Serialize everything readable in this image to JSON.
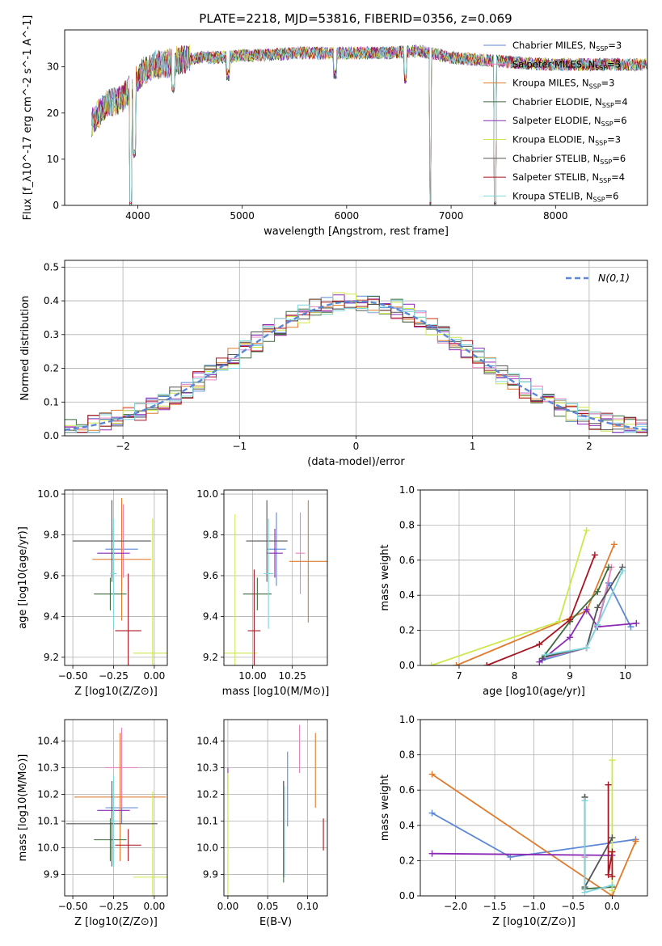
{
  "figure": {
    "title": "PLATE=2218, MJD=53816, FIBERID=0356, z=0.069"
  },
  "series_styles": [
    {
      "name": "Chabrier MILES",
      "nssp": "3",
      "color": "#5b87d6"
    },
    {
      "name": "Salpeter MILES",
      "nssp": "3",
      "color": "#e684c3"
    },
    {
      "name": "Kroupa MILES",
      "nssp": "3",
      "color": "#e07b2e"
    },
    {
      "name": "Chabrier ELODIE",
      "nssp": "4",
      "color": "#3e6b3e"
    },
    {
      "name": "Salpeter ELODIE",
      "nssp": "6",
      "color": "#8a2ab5"
    },
    {
      "name": "Kroupa ELODIE",
      "nssp": "3",
      "color": "#cde84a"
    },
    {
      "name": "Chabrier STELIB",
      "nssp": "6",
      "color": "#555555"
    },
    {
      "name": "Salpeter STELIB",
      "nssp": "4",
      "color": "#a81520"
    },
    {
      "name": "Kroupa STELIB",
      "nssp": "6",
      "color": "#7fd6dc"
    }
  ],
  "chart_data": [
    {
      "id": "spectrum",
      "type": "line",
      "title": "PLATE=2218, MJD=53816, FIBERID=0356, z=0.069",
      "xlabel": "wavelength [Angstrom, rest frame]",
      "ylabel": "Flux [f_λ10^-17 erg cm^-2 s^-1 A^-1]",
      "xlim": [
        3300,
        8880
      ],
      "ylim": [
        0,
        38
      ],
      "xticks": [
        4000,
        5000,
        6000,
        7000,
        8000
      ],
      "yticks": [
        0,
        10,
        20,
        30
      ],
      "grid": false,
      "legend": "upper right",
      "continuum": {
        "x": [
          3560,
          3700,
          3850,
          3950,
          4050,
          4150,
          4250,
          4400,
          4600,
          4800,
          5000,
          5200,
          5500,
          5800,
          6100,
          6400,
          6700,
          7000,
          7300,
          7600,
          7900,
          8200,
          8500,
          8880
        ],
        "y": [
          18,
          22,
          23,
          26,
          29,
          30.5,
          30.5,
          31.5,
          32,
          32,
          32.5,
          32.5,
          33,
          33,
          33,
          33,
          33.5,
          32,
          31.5,
          31,
          30.5,
          30.5,
          30.5,
          30.5
        ]
      },
      "features": [
        {
          "x": 3933,
          "y": 0,
          "label": ""
        },
        {
          "x": 3968,
          "y": 10,
          "label": ""
        },
        {
          "x": 4340,
          "y": 24,
          "label": ""
        },
        {
          "x": 4861,
          "y": 27,
          "label": ""
        },
        {
          "x": 5890,
          "y": 27,
          "label": ""
        },
        {
          "x": 6563,
          "y": 26,
          "label": ""
        },
        {
          "x": 6800,
          "y": 0,
          "label": ""
        },
        {
          "x": 7420,
          "y": 0,
          "label": ""
        }
      ]
    },
    {
      "id": "residuals",
      "type": "histogram",
      "xlabel": "(data-model)/error",
      "ylabel": "Normed distribution",
      "xlim": [
        -2.5,
        2.5
      ],
      "ylim": [
        0,
        0.52
      ],
      "xticks": [
        -2,
        -1,
        0,
        1,
        2
      ],
      "yticks": [
        0.0,
        0.1,
        0.2,
        0.3,
        0.4,
        0.5
      ],
      "grid": true,
      "legend": "upper right",
      "reference": {
        "name": "N(0,1)",
        "mean": 0,
        "sigma": 1
      }
    },
    {
      "id": "z-age",
      "type": "errorbar",
      "xlabel": "Z [log10(Z/Z⊙)]",
      "ylabel": "age [log10(age/yr)]",
      "xlim": [
        -0.55,
        0.08
      ],
      "ylim": [
        9.16,
        10.02
      ],
      "xticks": [
        -0.5,
        -0.25,
        0.0
      ],
      "yticks": [
        9.2,
        9.4,
        9.6,
        9.8,
        10.0
      ],
      "grid": true,
      "points": [
        {
          "series": 0,
          "x": -0.2,
          "xerr": 0.1,
          "y": 9.73,
          "yerr": 0.18
        },
        {
          "series": 1,
          "x": -0.19,
          "xerr": 0.02,
          "y": 9.77,
          "yerr": 0.18
        },
        {
          "series": 2,
          "x": -0.2,
          "xerr": 0.18,
          "y": 9.68,
          "yerr": 0.3
        },
        {
          "series": 3,
          "x": -0.27,
          "xerr": 0.1,
          "y": 9.51,
          "yerr": 0.08
        },
        {
          "series": 4,
          "x": -0.25,
          "xerr": 0.1,
          "y": 9.71,
          "yerr": 0.12
        },
        {
          "series": 5,
          "x": -0.01,
          "xerr": 0.12,
          "y": 9.22,
          "yerr": 0.66
        },
        {
          "series": 6,
          "x": -0.26,
          "xerr": 0.24,
          "y": 9.77,
          "yerr": 0.2
        },
        {
          "series": 7,
          "x": -0.16,
          "xerr": 0.08,
          "y": 9.33,
          "yerr": 0.28
        },
        {
          "series": 8,
          "x": -0.25,
          "xerr": 0.02,
          "y": 9.61,
          "yerr": 0.27
        }
      ]
    },
    {
      "id": "mass-age",
      "type": "errorbar",
      "xlabel": "mass [log10(M/M⊙)]",
      "ylabel": "",
      "xlim": [
        9.82,
        10.47
      ],
      "ylim": [
        9.16,
        10.02
      ],
      "xticks": [
        10.0,
        10.25
      ],
      "yticks": [
        9.2,
        9.4,
        9.6,
        9.8,
        10.0
      ],
      "grid": true,
      "points": [
        {
          "series": 0,
          "x": 10.15,
          "xerr": 0.06,
          "y": 9.73,
          "yerr": 0.18
        },
        {
          "series": 1,
          "x": 10.3,
          "xerr": 0.03,
          "y": 9.71,
          "yerr": 0.2
        },
        {
          "series": 2,
          "x": 10.35,
          "xerr": 0.12,
          "y": 9.67,
          "yerr": 0.3
        },
        {
          "series": 3,
          "x": 10.03,
          "xerr": 0.09,
          "y": 9.51,
          "yerr": 0.08
        },
        {
          "series": 4,
          "x": 10.14,
          "xerr": 0.05,
          "y": 9.71,
          "yerr": 0.12
        },
        {
          "series": 5,
          "x": 9.89,
          "xerr": 0.14,
          "y": 9.22,
          "yerr": 0.68
        },
        {
          "series": 6,
          "x": 10.09,
          "xerr": 0.13,
          "y": 9.77,
          "yerr": 0.2
        },
        {
          "series": 7,
          "x": 10.01,
          "xerr": 0.04,
          "y": 9.33,
          "yerr": 0.3
        },
        {
          "series": 8,
          "x": 10.1,
          "xerr": 0.03,
          "y": 9.61,
          "yerr": 0.27
        }
      ]
    },
    {
      "id": "age-weight",
      "type": "line",
      "xlabel": "age [log10(age/yr)]",
      "ylabel": "mass weight",
      "xlim": [
        6.3,
        10.4
      ],
      "ylim": [
        0,
        1.0
      ],
      "xticks": [
        7,
        8,
        9,
        10
      ],
      "yticks": [
        0.0,
        0.2,
        0.4,
        0.6,
        0.8,
        1.0
      ],
      "grid": true,
      "series": [
        {
          "series": 0,
          "x": [
            8.5,
            9.3,
            9.5,
            9.7,
            10.1
          ],
          "y": [
            0.03,
            0.1,
            0.23,
            0.47,
            0.22
          ]
        },
        {
          "series": 1,
          "x": [
            8.5,
            9.3,
            9.5,
            9.75
          ],
          "y": [
            0.04,
            0.1,
            0.23,
            0.56
          ]
        },
        {
          "series": 2,
          "x": [
            6.95,
            9.3,
            9.8
          ],
          "y": [
            0.0,
            0.31,
            0.69
          ]
        },
        {
          "series": 3,
          "x": [
            8.5,
            9.0,
            9.5,
            9.7
          ],
          "y": [
            0.04,
            0.25,
            0.42,
            0.56
          ]
        },
        {
          "series": 4,
          "x": [
            8.45,
            9.0,
            9.3,
            9.5,
            10.2
          ],
          "y": [
            0.02,
            0.16,
            0.32,
            0.22,
            0.24
          ]
        },
        {
          "series": 5,
          "x": [
            6.5,
            8.8,
            9.3
          ],
          "y": [
            0.0,
            0.25,
            0.77
          ]
        },
        {
          "series": 6,
          "x": [
            8.55,
            9.3,
            9.5,
            9.95
          ],
          "y": [
            0.05,
            0.1,
            0.33,
            0.56
          ]
        },
        {
          "series": 7,
          "x": [
            7.5,
            8.45,
            9.0,
            9.45
          ],
          "y": [
            0.0,
            0.12,
            0.26,
            0.63
          ]
        },
        {
          "series": 8,
          "x": [
            8.55,
            9.3,
            9.5,
            9.95
          ],
          "y": [
            0.06,
            0.1,
            0.23,
            0.54
          ]
        }
      ]
    },
    {
      "id": "z-mass",
      "type": "errorbar",
      "xlabel": "Z [log10(Z/Z⊙)]",
      "ylabel": "mass [log10(M/M⊙)]",
      "xlim": [
        -0.55,
        0.08
      ],
      "ylim": [
        9.82,
        10.48
      ],
      "xticks": [
        -0.5,
        -0.25,
        0.0
      ],
      "yticks": [
        9.9,
        10.0,
        10.1,
        10.2,
        10.3,
        10.4
      ],
      "grid": true,
      "points": [
        {
          "series": 0,
          "x": -0.2,
          "xerr": 0.1,
          "y": 10.15,
          "yerr": 0.06
        },
        {
          "series": 1,
          "x": -0.2,
          "xerr": 0.1,
          "y": 10.3,
          "yerr": 0.15
        },
        {
          "series": 2,
          "x": -0.21,
          "xerr": 0.28,
          "y": 10.19,
          "yerr": 0.24
        },
        {
          "series": 3,
          "x": -0.27,
          "xerr": 0.1,
          "y": 10.03,
          "yerr": 0.08
        },
        {
          "series": 4,
          "x": -0.25,
          "xerr": 0.1,
          "y": 10.14,
          "yerr": 0.05
        },
        {
          "series": 5,
          "x": -0.01,
          "xerr": 0.12,
          "y": 9.89,
          "yerr": 0.32
        },
        {
          "series": 6,
          "x": -0.26,
          "xerr": 0.28,
          "y": 10.09,
          "yerr": 0.16
        },
        {
          "series": 7,
          "x": -0.16,
          "xerr": 0.08,
          "y": 10.01,
          "yerr": 0.06
        },
        {
          "series": 8,
          "x": -0.25,
          "xerr": 0.02,
          "y": 10.1,
          "yerr": 0.17
        }
      ]
    },
    {
      "id": "ebv-mass",
      "type": "errorbar",
      "xlabel": "E(B-V)",
      "ylabel": "",
      "xlim": [
        -0.005,
        0.125
      ],
      "ylim": [
        9.82,
        10.48
      ],
      "xticks": [
        0.0,
        0.05,
        0.1
      ],
      "yticks": [
        9.9,
        10.0,
        10.1,
        10.2,
        10.3,
        10.4
      ],
      "grid": true,
      "points": [
        {
          "series": 0,
          "x": 0.075,
          "y": 10.22,
          "yerr": 0.14
        },
        {
          "series": 1,
          "x": 0.09,
          "y": 10.37,
          "yerr": 0.09
        },
        {
          "series": 2,
          "x": 0.11,
          "y": 10.29,
          "yerr": 0.14
        },
        {
          "series": 3,
          "x": 0.07,
          "y": 10.06,
          "yerr": 0.19
        },
        {
          "series": 4,
          "x": 0.0,
          "y": 10.25,
          "yerr": 0.05
        },
        {
          "series": 5,
          "x": 0.0,
          "y": 10.05,
          "yerr": 0.23
        },
        {
          "series": 6,
          "x": 0.07,
          "y": 10.07,
          "yerr": 0.18
        },
        {
          "series": 7,
          "x": 0.12,
          "y": 10.05,
          "yerr": 0.06
        },
        {
          "series": 8,
          "x": 0.071,
          "y": 10.06,
          "yerr": 0.17
        }
      ]
    },
    {
      "id": "z-weight",
      "type": "line",
      "xlabel": "Z [log10(Z/Z⊙)]",
      "ylabel": "mass weight",
      "xlim": [
        -2.45,
        0.45
      ],
      "ylim": [
        0,
        1.0
      ],
      "xticks": [
        -2.0,
        -1.5,
        -1.0,
        -0.5,
        0.0
      ],
      "yticks": [
        0.0,
        0.2,
        0.4,
        0.6,
        0.8,
        1.0
      ],
      "grid": true,
      "series": [
        {
          "series": 0,
          "x": [
            -2.3,
            -1.3,
            0.3
          ],
          "y": [
            0.47,
            0.22,
            0.32
          ]
        },
        {
          "series": 1,
          "x": [
            -0.35,
            -0.35
          ],
          "y": [
            0.04,
            0.22
          ]
        },
        {
          "series": 2,
          "x": [
            -2.3,
            0.0,
            0.3
          ],
          "y": [
            0.69,
            0.0,
            0.31
          ]
        },
        {
          "series": 3,
          "x": [
            -0.35,
            -0.35,
            0.0
          ],
          "y": [
            0.56,
            0.04,
            0.05
          ]
        },
        {
          "series": 4,
          "x": [
            -2.3,
            0.0
          ],
          "y": [
            0.24,
            0.23
          ]
        },
        {
          "series": 5,
          "x": [
            0.0,
            0.0,
            0.0
          ],
          "y": [
            0.77,
            0.03,
            0.25
          ]
        },
        {
          "series": 6,
          "x": [
            -0.35,
            -0.35,
            0.0
          ],
          "y": [
            0.56,
            0.05,
            0.33
          ]
        },
        {
          "series": 7,
          "x": [
            -0.05,
            -0.05,
            0.0,
            0.0
          ],
          "y": [
            0.63,
            0.12,
            0.25,
            0.11
          ]
        },
        {
          "series": 8,
          "x": [
            -0.35,
            -0.35,
            0.0
          ],
          "y": [
            0.54,
            0.02,
            0.06
          ]
        }
      ]
    }
  ]
}
